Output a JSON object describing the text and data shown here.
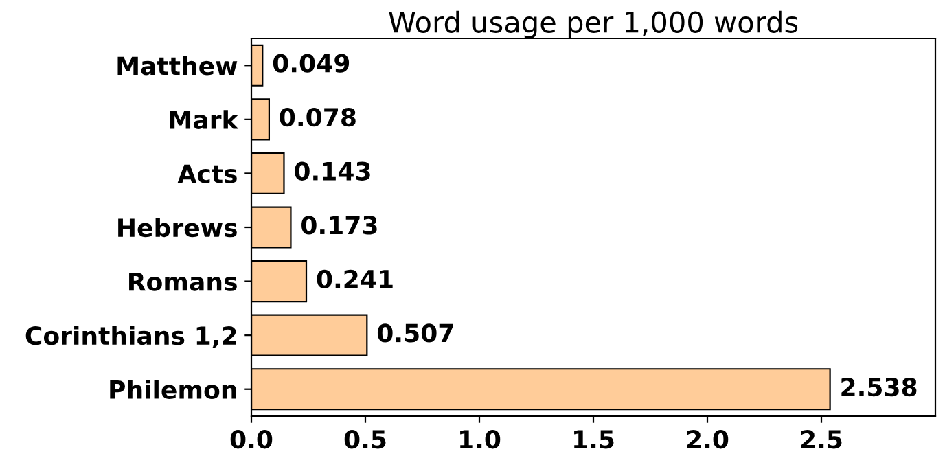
{
  "chart_data": {
    "type": "bar",
    "orientation": "horizontal",
    "title": "Word usage per 1,000 words",
    "categories": [
      "Matthew",
      "Mark",
      "Acts",
      "Hebrews",
      "Romans",
      "Corinthians 1,2",
      "Philemon"
    ],
    "values": [
      0.049,
      0.078,
      0.143,
      0.173,
      0.241,
      0.507,
      2.538
    ],
    "color": "#ffcc99",
    "data_labels": true,
    "xlim": [
      0,
      3.0
    ],
    "xticks": [
      {
        "value": 0,
        "label": "0.0"
      },
      0.5,
      {
        "value": 1,
        "label": "1.0"
      },
      1.5,
      {
        "value": 2,
        "label": "2.0"
      },
      2.5
    ],
    "grid": false
  }
}
